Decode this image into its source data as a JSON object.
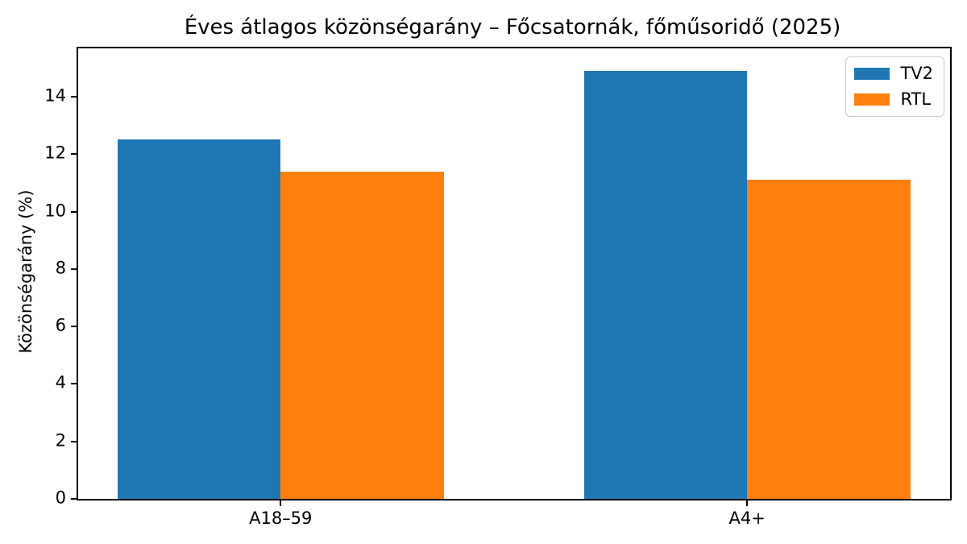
{
  "chart_data": {
    "type": "bar",
    "title": "Éves átlagos közönségarány – Főcsatornák, főműsoridő (2025)",
    "ylabel": "Közönségarány (%)",
    "xlabel": "",
    "categories": [
      "A18–59",
      "A4+"
    ],
    "series": [
      {
        "name": "TV2",
        "color": "#1f77b4",
        "values": [
          12.5,
          14.9
        ]
      },
      {
        "name": "RTL",
        "color": "#ff7f0e",
        "values": [
          11.4,
          11.1
        ]
      }
    ],
    "yticks": [
      0,
      2,
      4,
      6,
      8,
      10,
      12,
      14
    ],
    "ylim": [
      0,
      15.68
    ],
    "xlim": [
      -0.434,
      1.435
    ],
    "bar_width": 0.35,
    "grid": false,
    "legend_position": "upper right",
    "colors": {
      "spine": "#000000",
      "legend_border": "#cccccc",
      "background": "#ffffff"
    }
  }
}
